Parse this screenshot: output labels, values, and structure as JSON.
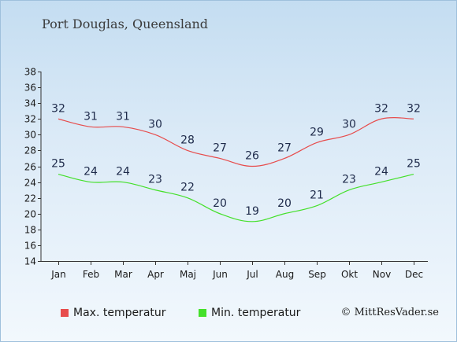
{
  "header": {
    "title": "Port Douglas, Queensland"
  },
  "legend": {
    "max_label": "Max. temperatur",
    "min_label": "Min. temperatur"
  },
  "credit": "© MittResVader.se",
  "chart_data": {
    "type": "line",
    "title": "Port Douglas, Queensland",
    "categories": [
      "Jan",
      "Feb",
      "Mar",
      "Apr",
      "Maj",
      "Jun",
      "Jul",
      "Aug",
      "Sep",
      "Okt",
      "Nov",
      "Dec"
    ],
    "series": [
      {
        "name": "Max. temperatur",
        "color": "#e74c4c",
        "values": [
          32,
          31,
          31,
          30,
          28,
          27,
          26,
          27,
          29,
          30,
          32,
          32
        ]
      },
      {
        "name": "Min. temperatur",
        "color": "#44e02a",
        "values": [
          25,
          24,
          24,
          23,
          22,
          20,
          19,
          20,
          21,
          23,
          24,
          25
        ]
      }
    ],
    "ylim": [
      14,
      38
    ],
    "yticks": [
      14,
      16,
      18,
      20,
      22,
      24,
      26,
      28,
      30,
      32,
      34,
      36,
      38
    ],
    "legend_position": "bottom-left"
  }
}
